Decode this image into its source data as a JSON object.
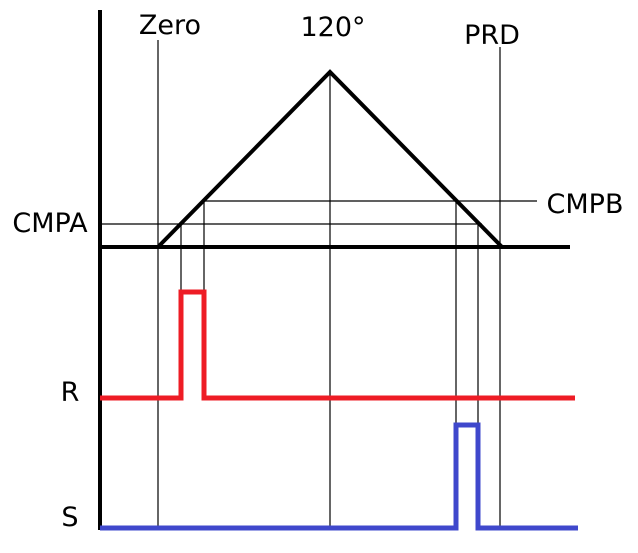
{
  "labels": {
    "zero": "Zero",
    "angle": "120°",
    "prd": "PRD",
    "cmpa": "CMPA",
    "cmpb": "CMPB",
    "r": "R",
    "s": "S"
  },
  "colors": {
    "axis": "#000000",
    "guide": "#000000",
    "r_signal": "#ee1c25",
    "s_signal": "#3f48cc"
  }
}
